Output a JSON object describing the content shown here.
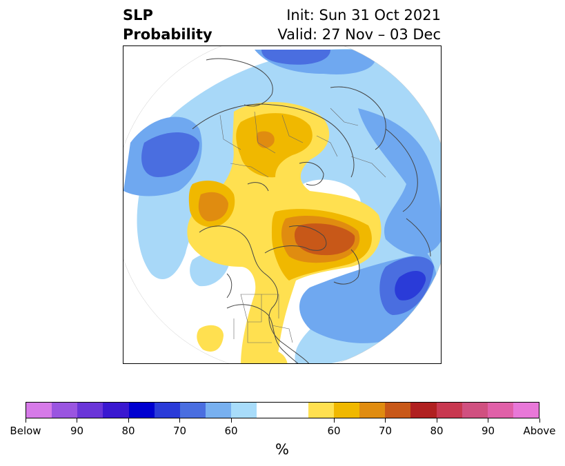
{
  "title": {
    "left_line1": "SLP",
    "left_line2": "Probability",
    "right_line1": "Init: Sun 31 Oct 2021",
    "right_line2": "Valid: 27 Nov – 03 Dec"
  },
  "map": {
    "projection": "north-polar-stereographic",
    "features": [
      "continents",
      "country-borders",
      "us-state-borders",
      "probability-shading"
    ],
    "colors": {
      "blue_light": "#a8d8f8",
      "blue_mid": "#6fa8f0",
      "blue_dark": "#4a6ee0",
      "blue_darker": "#2a3bd8",
      "yellow": "#ffe050",
      "gold": "#f0b800",
      "orange": "#e08c10",
      "dark_orange": "#c85818"
    }
  },
  "colorbar": {
    "colors": [
      "#d67ae8",
      "#9a55e0",
      "#6a35d8",
      "#3a18d0",
      "#0000d0",
      "#2a3bd8",
      "#4a6ee0",
      "#78b0f0",
      "#a8dcfa",
      "#ffffff",
      "#ffffff",
      "#ffe050",
      "#f0b800",
      "#e08c10",
      "#c85818",
      "#b02020",
      "#c83850",
      "#d05080",
      "#e060a8",
      "#e878d8"
    ],
    "labels": [
      "Below",
      "90",
      "80",
      "70",
      "60",
      "60",
      "70",
      "80",
      "90",
      "Above"
    ],
    "unit": "%"
  }
}
